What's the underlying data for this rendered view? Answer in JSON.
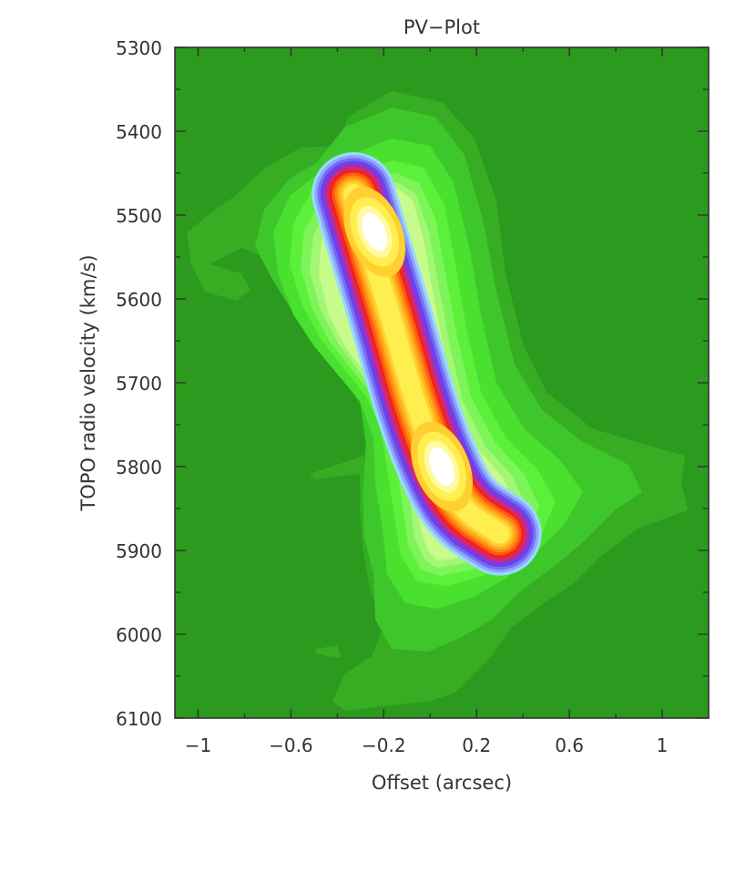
{
  "chart_data": {
    "type": "heatmap",
    "subtype": "filled-contour",
    "title": "PV−Plot",
    "xlabel": "Offset (arcsec)",
    "ylabel": "TOPO radio velocity  (km/s)",
    "xlim": [
      -1.1,
      1.2
    ],
    "ylim": [
      5300,
      6100
    ],
    "y_inverted": true,
    "x_ticks": [
      -1,
      -0.6,
      -0.2,
      0.2,
      0.6,
      1
    ],
    "x_tick_labels": [
      "−1",
      "−0.6",
      "−0.2",
      "0.2",
      "0.6",
      "1"
    ],
    "y_ticks": [
      5300,
      5400,
      5500,
      5600,
      5700,
      5800,
      5900,
      6000,
      6100
    ],
    "y_tick_labels": [
      "5300",
      "5400",
      "5500",
      "5600",
      "5700",
      "5800",
      "5900",
      "6000",
      "6100"
    ],
    "grid": false,
    "colors": {
      "background": "#2b9a1e",
      "low_levels": [
        "#36ad23",
        "#3ec72a",
        "#49e030",
        "#5cf03a",
        "#7df55a",
        "#a4f774",
        "#c8fb8c"
      ],
      "mid_levels": [
        "#9ad8ff",
        "#8aa8ff",
        "#7a6cf0",
        "#6644ee",
        "#9a30c8",
        "#d42a6a",
        "#f02222"
      ],
      "high_levels": [
        "#ff5a10",
        "#ff8a10",
        "#ffb020",
        "#ffd030",
        "#ffee50",
        "#fff9a0",
        "#ffffff"
      ]
    },
    "ridge": [
      {
        "offset": -0.33,
        "velocity": 5475
      },
      {
        "offset": -0.26,
        "velocity": 5540
      },
      {
        "offset": -0.16,
        "velocity": 5630
      },
      {
        "offset": -0.07,
        "velocity": 5720
      },
      {
        "offset": 0.02,
        "velocity": 5790
      },
      {
        "offset": 0.13,
        "velocity": 5850
      },
      {
        "offset": 0.3,
        "velocity": 5880
      }
    ],
    "peaks": [
      {
        "offset": -0.24,
        "velocity": 5520,
        "level": "max"
      },
      {
        "offset": 0.05,
        "velocity": 5800,
        "level": "max"
      }
    ]
  }
}
